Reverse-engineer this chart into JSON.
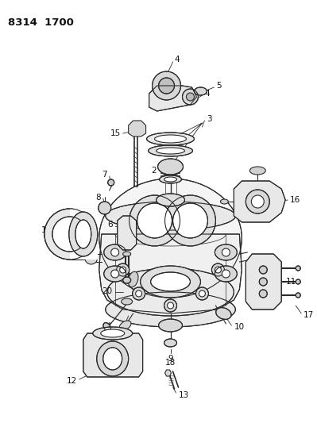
{
  "title": "8314  1700",
  "bg_color": "#ffffff",
  "line_color": "#2a2a2a",
  "text_color": "#111111",
  "figsize": [
    3.99,
    5.33
  ],
  "dpi": 100,
  "label_fontsize": 7.5
}
